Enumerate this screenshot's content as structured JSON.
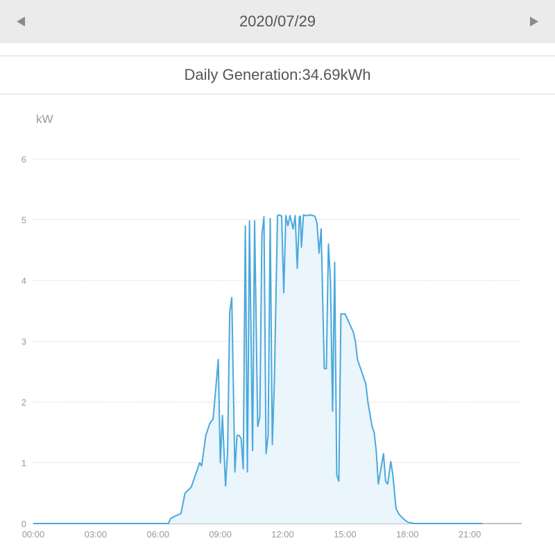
{
  "header": {
    "date": "2020/07/29",
    "prev_icon": "triangle-left-icon",
    "next_icon": "triangle-right-icon"
  },
  "summary": {
    "label": "Daily Generation:",
    "value": "34.69kWh"
  },
  "colors": {
    "line": "#4aa8db",
    "fill": "#eaf5fc",
    "grid": "#d6d6d6",
    "axis": "#aaaaaa"
  },
  "chart_data": {
    "type": "area",
    "unit_label": "kW",
    "x_ticks": [
      "00:00",
      "03:00",
      "06:00",
      "09:00",
      "12:00",
      "15:00",
      "18:00",
      "21:00"
    ],
    "y_ticks": [
      "0",
      "1",
      "2",
      "3",
      "4",
      "5",
      "6"
    ],
    "xlim": [
      0,
      23.5
    ],
    "ylim": [
      0,
      6
    ],
    "grid": true,
    "series": [
      {
        "values_hours": [
          0,
          6.5,
          6.6,
          6.8,
          7.1,
          7.3,
          7.45,
          7.6,
          7.8,
          8.0,
          8.1,
          8.3,
          8.5,
          8.65,
          8.8,
          8.9,
          9.0,
          9.1,
          9.25,
          9.35,
          9.45,
          9.55,
          9.7,
          9.8,
          9.9,
          10.0,
          10.1,
          10.2,
          10.3,
          10.4,
          10.55,
          10.65,
          10.8,
          10.9,
          11.0,
          11.1,
          11.2,
          11.3,
          11.4,
          11.5,
          11.6,
          11.75,
          11.85,
          11.95,
          12.05,
          12.15,
          12.25,
          12.35,
          12.5,
          12.6,
          12.7,
          12.8,
          12.85,
          12.9,
          13.0,
          13.1,
          13.2,
          13.3,
          13.45,
          13.55,
          13.65,
          13.75,
          13.85,
          14.0,
          14.1,
          14.2,
          14.3,
          14.4,
          14.5,
          14.6,
          14.7,
          14.8,
          15.0,
          15.2,
          15.4,
          15.5,
          15.6,
          15.7,
          15.8,
          15.9,
          16.0,
          16.1,
          16.2,
          16.3,
          16.4,
          16.5,
          16.6,
          16.75,
          16.85,
          16.95,
          17.05,
          17.2,
          17.3,
          17.45,
          17.6,
          17.75,
          17.9,
          18.05,
          18.2,
          18.35,
          18.5,
          18.65,
          18.8,
          18.95,
          19.1,
          19.25,
          19.4,
          19.55,
          19.65,
          19.75,
          19.85,
          19.95,
          20.05,
          20.15,
          20.3,
          20.45,
          20.6,
          20.8,
          21.0,
          21.2,
          21.45,
          21.6
        ],
        "values_kw": [
          0,
          0,
          0.08,
          0.12,
          0.16,
          0.5,
          0.55,
          0.6,
          0.8,
          1.0,
          0.95,
          1.45,
          1.65,
          1.72,
          2.3,
          2.7,
          1.0,
          1.78,
          0.62,
          1.2,
          3.48,
          3.72,
          0.85,
          1.45,
          1.45,
          1.4,
          0.9,
          4.9,
          0.85,
          4.98,
          1.2,
          4.98,
          1.6,
          1.75,
          4.75,
          5.05,
          1.15,
          1.45,
          5.02,
          1.3,
          2.35,
          5.07,
          5.08,
          5.06,
          3.8,
          5.07,
          4.9,
          5.07,
          4.85,
          5.07,
          4.2,
          5.05,
          5.06,
          4.55,
          5.08,
          5.07,
          5.07,
          5.08,
          5.07,
          5.06,
          4.95,
          4.45,
          4.85,
          2.55,
          2.55,
          4.6,
          4.0,
          1.85,
          4.3,
          0.8,
          0.7,
          3.45,
          3.45,
          3.3,
          3.15,
          3.0,
          2.7,
          2.6,
          2.5,
          2.4,
          2.3,
          2.0,
          1.8,
          1.6,
          1.5,
          1.2,
          0.65,
          0.95,
          1.15,
          0.7,
          0.65,
          1.02,
          0.8,
          0.25,
          0.15,
          0.1,
          0.05,
          0.02,
          0.01,
          0,
          0,
          0,
          0,
          0,
          0,
          0,
          0,
          0,
          0,
          0,
          0,
          0,
          0,
          0,
          0,
          0,
          0,
          0,
          0,
          0,
          0,
          0
        ]
      }
    ]
  }
}
